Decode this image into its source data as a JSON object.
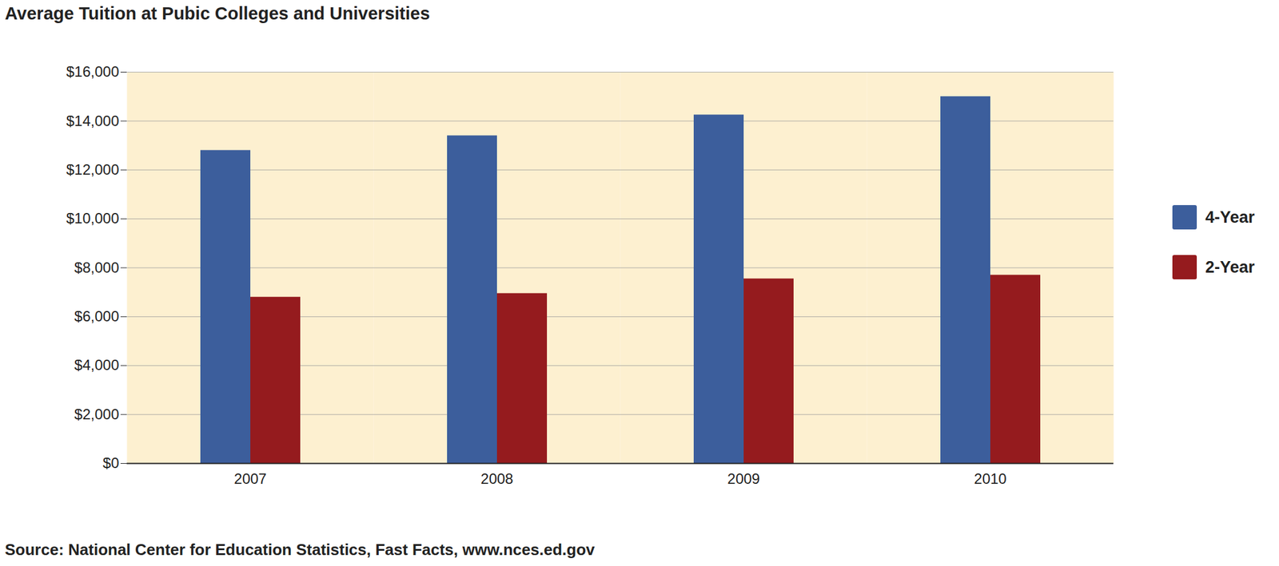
{
  "chart_data": {
    "type": "bar",
    "title": "Average Tuition at Pubic Colleges and Universities",
    "caption": "Source: National Center for Education Statistics, Fast Facts, www.nces.ed.gov",
    "categories": [
      "2007",
      "2008",
      "2009",
      "2010"
    ],
    "series": [
      {
        "name": "4-Year",
        "color": "#3c5e9c",
        "values": [
          12800,
          13400,
          14250,
          15000
        ]
      },
      {
        "name": "2-Year",
        "color": "#951b1e",
        "values": [
          6800,
          6950,
          7550,
          7700
        ]
      }
    ],
    "ylim": [
      0,
      16000
    ],
    "yticks": [
      {
        "value": 0,
        "label": "$0"
      },
      {
        "value": 2000,
        "label": "$2,000"
      },
      {
        "value": 4000,
        "label": "$4,000"
      },
      {
        "value": 6000,
        "label": "$6,000"
      },
      {
        "value": 8000,
        "label": "$8,000"
      },
      {
        "value": 10000,
        "label": "$10,000"
      },
      {
        "value": 12000,
        "label": "$12,000"
      },
      {
        "value": 14000,
        "label": "$14,000"
      },
      {
        "value": 16000,
        "label": "$16,000"
      }
    ],
    "grid": true,
    "legend": "right"
  }
}
